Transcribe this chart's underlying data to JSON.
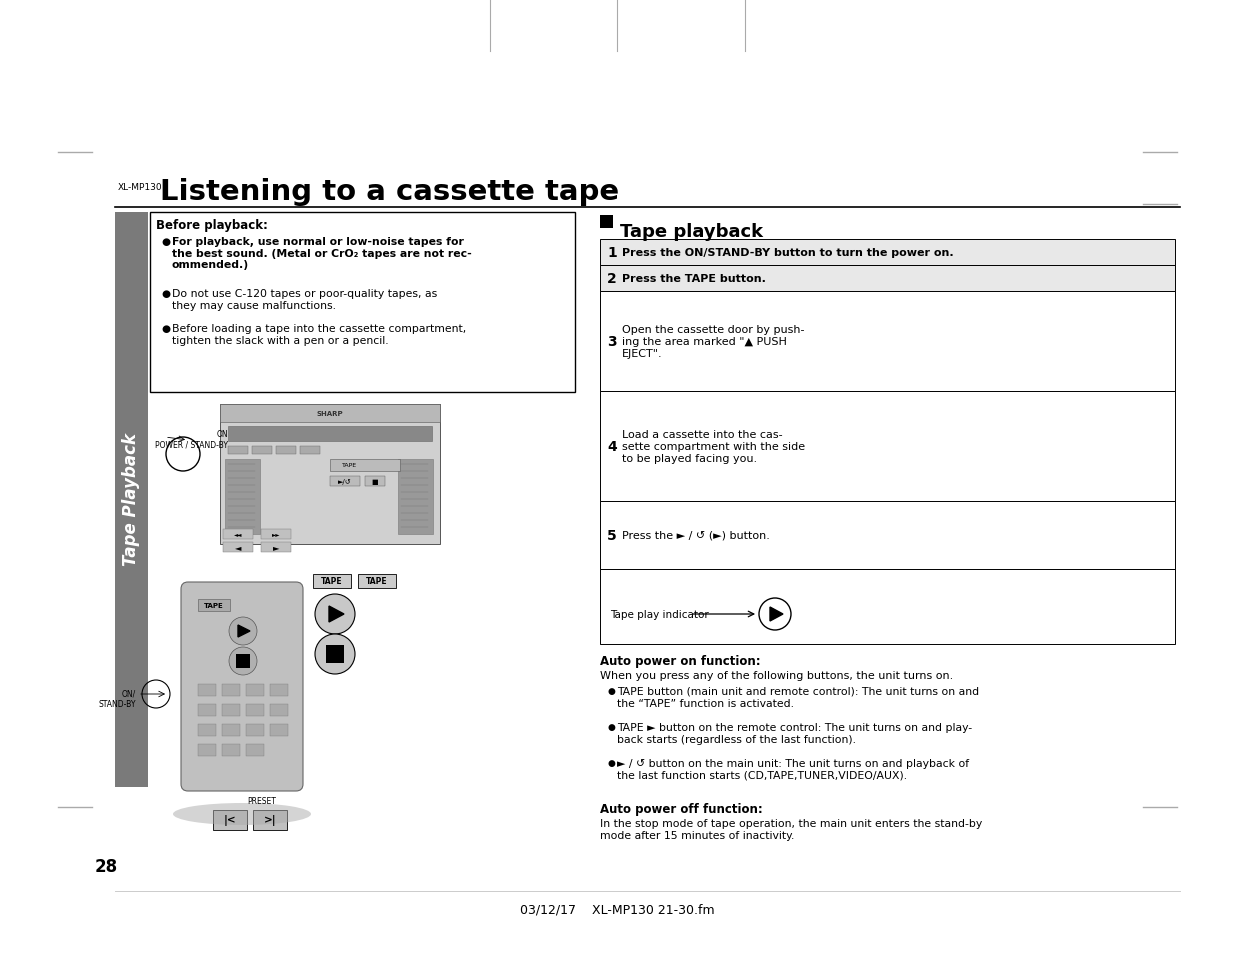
{
  "page_num": "28",
  "model": "XL-MP130",
  "footer": "03/12/17    XL-MP130 21-30.fm",
  "title": "Listening to a cassette tape",
  "section_title": "Tape playback",
  "before_playback_title": "Before playback:",
  "before_bullet_bold": "For playback, use normal or low-noise tapes for\nthe best sound. (Metal or CrO₂ tapes are not rec-\nommended.)",
  "before_bullet_2": "Do not use C-120 tapes or poor-quality tapes, as\nthey may cause malfunctions.",
  "before_bullet_3": "Before loading a tape into the cassette compartment,\ntighten the slack with a pen or a pencil.",
  "step1": "Press the ON/STAND-BY button to turn the power on.",
  "step2": "Press the TAPE button.",
  "step3": "Open the cassette door by push-\ning the area marked \"▲ PUSH\nEJECT\".",
  "step4": "Load a cassette into the cas-\nsette compartment with the side\nto be played facing you.",
  "step5": "Press the ► / ↺ (►) button.",
  "tape_play_indicator": "Tape play indicator",
  "auto_on_title": "Auto power on function:",
  "auto_on_intro": "When you press any of the following buttons, the unit turns on.",
  "auto_on_b1": "TAPE button (main unit and remote control): The unit turns on and\nthe “TAPE” function is activated.",
  "auto_on_b2": "TAPE ► button on the remote control: The unit turns on and play-\nback starts (regardless of the last function).",
  "auto_on_b3": "► / ↺ button on the main unit: The unit turns on and playback of\nthe last function starts (CD,TAPE,TUNER,VIDEO/AUX).",
  "auto_off_title": "Auto power off function:",
  "auto_off_text": "In the stop mode of tape operation, the main unit enters the stand-by\nmode after 15 minutes of inactivity.",
  "sidebar_text": "Tape Playback",
  "label_power": "ON\nPOWER / STAND-BY",
  "label_on_standby": "ON/\nSTAND-BY",
  "label_preset": "PRESET",
  "bg": "#ffffff",
  "black": "#000000",
  "gray_sidebar": "#7a7a7a",
  "gray_step1": "#e8e8e8",
  "gray_step2": "#e8e8e8"
}
